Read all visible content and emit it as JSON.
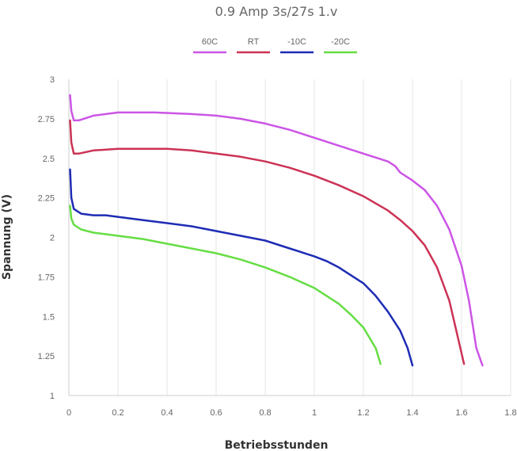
{
  "chart_data": {
    "type": "line",
    "title": "0.9 Amp 3s/27s 1.v",
    "xlabel": "Betriebsstunden",
    "ylabel": "Spannung (V)",
    "xlim": [
      0,
      1.8
    ],
    "ylim": [
      1,
      3
    ],
    "xticks": [
      "0",
      "0.2",
      "0.4",
      "0.6",
      "0.8",
      "1",
      "1.2",
      "1.4",
      "1.6",
      "1.8"
    ],
    "yticks": [
      "1",
      "1.25",
      "1.5",
      "1.75",
      "2",
      "2.25",
      "2.5",
      "2.75",
      "3"
    ],
    "grid": "vertical",
    "legend_position": "top-center",
    "series": [
      {
        "name": "60C",
        "color": "#cc55e6",
        "points": [
          [
            0.005,
            2.9
          ],
          [
            0.01,
            2.8
          ],
          [
            0.02,
            2.74
          ],
          [
            0.04,
            2.74
          ],
          [
            0.1,
            2.77
          ],
          [
            0.2,
            2.79
          ],
          [
            0.35,
            2.79
          ],
          [
            0.5,
            2.78
          ],
          [
            0.6,
            2.77
          ],
          [
            0.7,
            2.75
          ],
          [
            0.8,
            2.72
          ],
          [
            0.9,
            2.68
          ],
          [
            1.0,
            2.63
          ],
          [
            1.1,
            2.58
          ],
          [
            1.2,
            2.53
          ],
          [
            1.3,
            2.48
          ],
          [
            1.33,
            2.45
          ],
          [
            1.35,
            2.41
          ],
          [
            1.4,
            2.36
          ],
          [
            1.45,
            2.3
          ],
          [
            1.5,
            2.2
          ],
          [
            1.55,
            2.05
          ],
          [
            1.6,
            1.82
          ],
          [
            1.63,
            1.6
          ],
          [
            1.66,
            1.3
          ],
          [
            1.685,
            1.19
          ]
        ]
      },
      {
        "name": "RT",
        "color": "#cc3355",
        "points": [
          [
            0.005,
            2.74
          ],
          [
            0.01,
            2.6
          ],
          [
            0.02,
            2.53
          ],
          [
            0.04,
            2.53
          ],
          [
            0.1,
            2.55
          ],
          [
            0.2,
            2.56
          ],
          [
            0.3,
            2.56
          ],
          [
            0.4,
            2.56
          ],
          [
            0.5,
            2.55
          ],
          [
            0.6,
            2.53
          ],
          [
            0.7,
            2.51
          ],
          [
            0.8,
            2.48
          ],
          [
            0.9,
            2.44
          ],
          [
            1.0,
            2.39
          ],
          [
            1.1,
            2.33
          ],
          [
            1.2,
            2.26
          ],
          [
            1.3,
            2.17
          ],
          [
            1.35,
            2.11
          ],
          [
            1.4,
            2.04
          ],
          [
            1.45,
            1.95
          ],
          [
            1.5,
            1.81
          ],
          [
            1.55,
            1.6
          ],
          [
            1.58,
            1.4
          ],
          [
            1.61,
            1.2
          ]
        ]
      },
      {
        "name": "-10C",
        "color": "#1f2cb5",
        "points": [
          [
            0.005,
            2.43
          ],
          [
            0.01,
            2.25
          ],
          [
            0.02,
            2.18
          ],
          [
            0.05,
            2.15
          ],
          [
            0.1,
            2.14
          ],
          [
            0.15,
            2.14
          ],
          [
            0.2,
            2.13
          ],
          [
            0.3,
            2.11
          ],
          [
            0.4,
            2.09
          ],
          [
            0.5,
            2.07
          ],
          [
            0.6,
            2.04
          ],
          [
            0.7,
            2.01
          ],
          [
            0.8,
            1.98
          ],
          [
            0.9,
            1.93
          ],
          [
            1.0,
            1.88
          ],
          [
            1.05,
            1.85
          ],
          [
            1.1,
            1.81
          ],
          [
            1.15,
            1.76
          ],
          [
            1.2,
            1.71
          ],
          [
            1.25,
            1.63
          ],
          [
            1.3,
            1.53
          ],
          [
            1.35,
            1.41
          ],
          [
            1.38,
            1.3
          ],
          [
            1.4,
            1.19
          ]
        ]
      },
      {
        "name": "-20C",
        "color": "#66dd44",
        "points": [
          [
            0.005,
            2.2
          ],
          [
            0.01,
            2.12
          ],
          [
            0.02,
            2.08
          ],
          [
            0.05,
            2.05
          ],
          [
            0.1,
            2.03
          ],
          [
            0.2,
            2.01
          ],
          [
            0.3,
            1.99
          ],
          [
            0.4,
            1.96
          ],
          [
            0.5,
            1.93
          ],
          [
            0.6,
            1.9
          ],
          [
            0.7,
            1.86
          ],
          [
            0.8,
            1.81
          ],
          [
            0.9,
            1.75
          ],
          [
            1.0,
            1.68
          ],
          [
            1.05,
            1.63
          ],
          [
            1.1,
            1.58
          ],
          [
            1.15,
            1.51
          ],
          [
            1.2,
            1.43
          ],
          [
            1.25,
            1.3
          ],
          [
            1.27,
            1.2
          ]
        ]
      }
    ]
  }
}
